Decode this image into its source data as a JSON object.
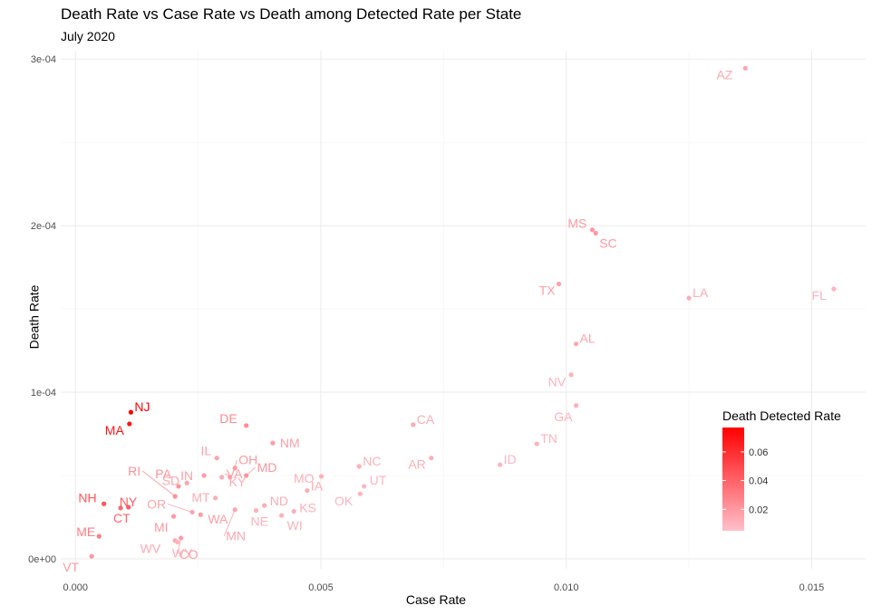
{
  "chart_data": {
    "type": "scatter",
    "title": "Death Rate vs Case Rate vs Death among Detected Rate per State",
    "subtitle": "July 2020",
    "xlabel": "Case Rate",
    "ylabel": "Death Rate",
    "xlim": [
      -0.0003,
      0.0161
    ],
    "ylim": [
      -6e-06,
      0.000305
    ],
    "x_ticks": [
      0,
      0.005,
      0.01,
      0.015
    ],
    "x_tick_labels": [
      "0.000",
      "0.005",
      "0.010",
      "0.015"
    ],
    "y_ticks": [
      0,
      0.0001,
      0.0002,
      0.0003
    ],
    "y_tick_labels": [
      "0e+00",
      "1e-04",
      "2e-04",
      "3e-04"
    ],
    "grid": true,
    "legend": {
      "title": "Death Detected Rate",
      "placement": "right",
      "ticks": [
        0.02,
        0.04,
        0.06
      ],
      "tick_labels": [
        "0.02",
        "0.04",
        "0.06"
      ],
      "range": [
        0.005,
        0.077
      ],
      "color_low": "#ffc0cb",
      "color_high": "#ff0000"
    },
    "points": [
      {
        "label": "AZ",
        "x": 0.01365,
        "y": 0.0002945,
        "color_value": 0.015
      },
      {
        "label": "MS",
        "x": 0.01053,
        "y": 0.0001975,
        "color_value": 0.02
      },
      {
        "label": "SC",
        "x": 0.0106,
        "y": 0.0001955,
        "color_value": 0.02
      },
      {
        "label": "TX",
        "x": 0.00985,
        "y": 0.000165,
        "color_value": 0.017
      },
      {
        "label": "LA",
        "x": 0.0125,
        "y": 0.0001565,
        "color_value": 0.013
      },
      {
        "label": "FL",
        "x": 0.01545,
        "y": 0.000162,
        "color_value": 0.01
      },
      {
        "label": "AL",
        "x": 0.0102,
        "y": 0.000129,
        "color_value": 0.015
      },
      {
        "label": "NV",
        "x": 0.0101,
        "y": 0.0001105,
        "color_value": 0.01
      },
      {
        "label": "GA",
        "x": 0.0102,
        "y": 9.2e-05,
        "color_value": 0.011
      },
      {
        "label": "NJ",
        "x": 0.00113,
        "y": 8.8e-05,
        "color_value": 0.077
      },
      {
        "label": "MA",
        "x": 0.0011,
        "y": 8.1e-05,
        "color_value": 0.069
      },
      {
        "label": "DE",
        "x": 0.00348,
        "y": 8e-05,
        "color_value": 0.025
      },
      {
        "label": "CA",
        "x": 0.00688,
        "y": 8.05e-05,
        "color_value": 0.013
      },
      {
        "label": "OH",
        "x": 0.00325,
        "y": 5.45e-05,
        "color_value": 0.02
      },
      {
        "label": "NM",
        "x": 0.00402,
        "y": 6.95e-05,
        "color_value": 0.018
      },
      {
        "label": "TN",
        "x": 0.0094,
        "y": 6.9e-05,
        "color_value": 0.01
      },
      {
        "label": "IL",
        "x": 0.00288,
        "y": 6.05e-05,
        "color_value": 0.016
      },
      {
        "label": "AR",
        "x": 0.00725,
        "y": 6.05e-05,
        "color_value": 0.012
      },
      {
        "label": "VA",
        "x": 0.00315,
        "y": 4.9e-05,
        "color_value": 0.018
      },
      {
        "label": "NC",
        "x": 0.00578,
        "y": 5.55e-05,
        "color_value": 0.011
      },
      {
        "label": "ID",
        "x": 0.00865,
        "y": 5.65e-05,
        "color_value": 0.009
      },
      {
        "label": "RI",
        "x": 0.00203,
        "y": 3.75e-05,
        "color_value": 0.023
      },
      {
        "label": "MD",
        "x": 0.00348,
        "y": 5e-05,
        "color_value": 0.022
      },
      {
        "label": "SD",
        "x": 0.00227,
        "y": 4.55e-05,
        "color_value": 0.015
      },
      {
        "label": "IN",
        "x": 0.00262,
        "y": 5e-05,
        "color_value": 0.018
      },
      {
        "label": "PA",
        "x": 0.0021,
        "y": 4.35e-05,
        "color_value": 0.022
      },
      {
        "label": "MO",
        "x": 0.00501,
        "y": 4.95e-05,
        "color_value": 0.012
      },
      {
        "label": "IA",
        "x": 0.00472,
        "y": 4.1e-05,
        "color_value": 0.013
      },
      {
        "label": "KY",
        "x": 0.00298,
        "y": 4.9e-05,
        "color_value": 0.013
      },
      {
        "label": "UT",
        "x": 0.00588,
        "y": 4.35e-05,
        "color_value": 0.009
      },
      {
        "label": "MT",
        "x": 0.00285,
        "y": 3.65e-05,
        "color_value": 0.012
      },
      {
        "label": "NH",
        "x": 0.00058,
        "y": 3.3e-05,
        "color_value": 0.045
      },
      {
        "label": "NY",
        "x": 0.00108,
        "y": 3.1e-05,
        "color_value": 0.043
      },
      {
        "label": "OK",
        "x": 0.0058,
        "y": 3.9e-05,
        "color_value": 0.009
      },
      {
        "label": "ND",
        "x": 0.00385,
        "y": 3.2e-05,
        "color_value": 0.013
      },
      {
        "label": "KS",
        "x": 0.00445,
        "y": 2.85e-05,
        "color_value": 0.012
      },
      {
        "label": "OR",
        "x": 0.00238,
        "y": 2.8e-05,
        "color_value": 0.016
      },
      {
        "label": "WA",
        "x": 0.00255,
        "y": 2.65e-05,
        "color_value": 0.018
      },
      {
        "label": "CT",
        "x": 0.00092,
        "y": 3.05e-05,
        "color_value": 0.038
      },
      {
        "label": "NE",
        "x": 0.00368,
        "y": 2.9e-05,
        "color_value": 0.011
      },
      {
        "label": "WI",
        "x": 0.0042,
        "y": 2.6e-05,
        "color_value": 0.011
      },
      {
        "label": "MN",
        "x": 0.00325,
        "y": 2.95e-05,
        "color_value": 0.015
      },
      {
        "label": "MI",
        "x": 0.002,
        "y": 2.55e-05,
        "color_value": 0.02
      },
      {
        "label": "CO",
        "x": 0.00215,
        "y": 1.25e-05,
        "color_value": 0.018
      },
      {
        "label": "WV",
        "x": 0.00203,
        "y": 1.1e-05,
        "color_value": 0.013
      },
      {
        "label": "WY",
        "x": 0.00208,
        "y": 1e-05,
        "color_value": 0.01
      },
      {
        "label": "ME",
        "x": 0.00048,
        "y": 1.35e-05,
        "color_value": 0.03
      },
      {
        "label": "VT",
        "x": 0.00033,
        "y": 1.5e-06,
        "color_value": 0.02
      }
    ]
  }
}
